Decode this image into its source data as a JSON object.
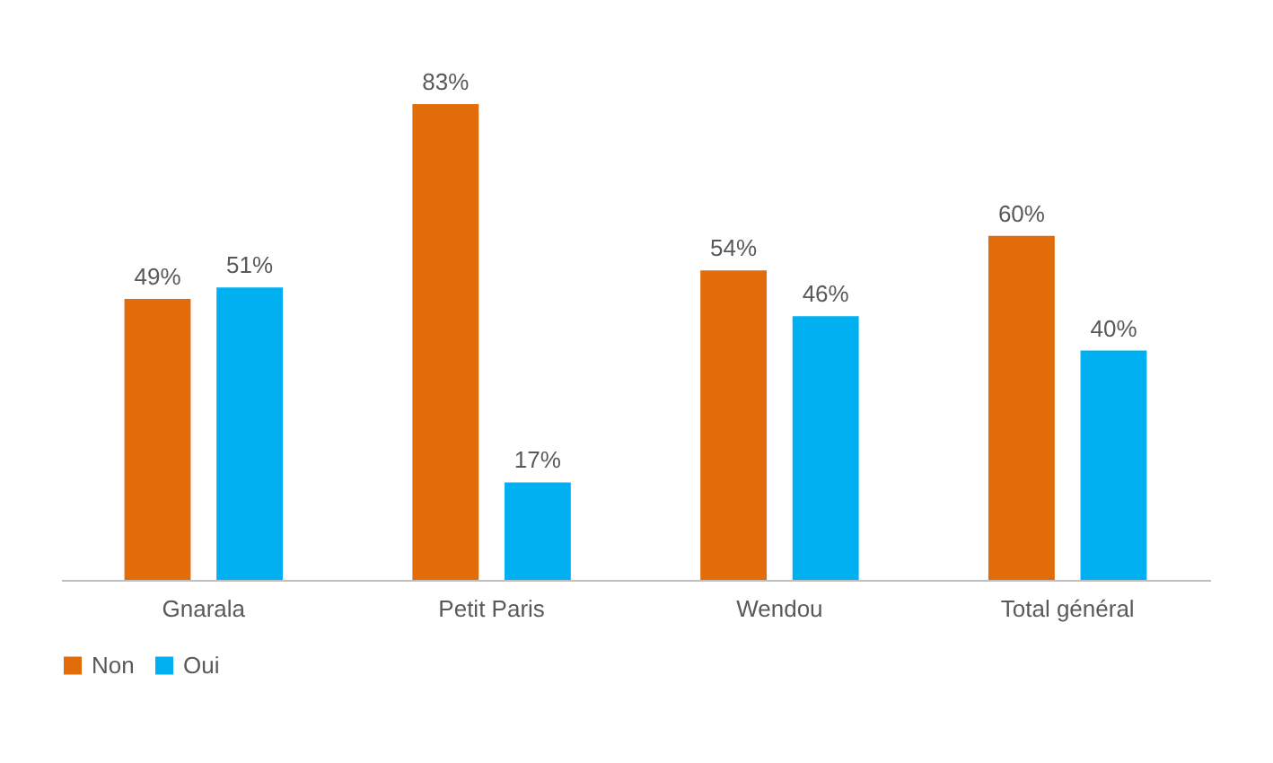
{
  "chart_data": {
    "type": "bar",
    "categories": [
      "Gnarala",
      "Petit Paris",
      "Wendou",
      "Total général"
    ],
    "series": [
      {
        "name": "Non",
        "color": "#e36c0a",
        "values": [
          49,
          83,
          54,
          60
        ],
        "value_labels": [
          "49%",
          "83%",
          "54%",
          "60%"
        ]
      },
      {
        "name": "Oui",
        "color": "#00b0f0",
        "values": [
          51,
          17,
          46,
          40
        ],
        "value_labels": [
          "51%",
          "17%",
          "46%",
          "40%"
        ]
      }
    ],
    "grid": false,
    "legend": "bottom"
  }
}
